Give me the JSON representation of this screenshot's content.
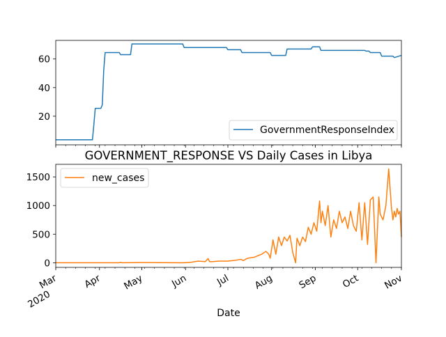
{
  "chart_data": [
    {
      "type": "line",
      "title": "",
      "xlabel": "",
      "ylabel": "",
      "ylim": [
        0,
        73
      ],
      "y_ticks": [
        20,
        40,
        60
      ],
      "grid": false,
      "legend_position": "lower right",
      "series": [
        {
          "name": "GovernmentResponseIndex",
          "color": "#1f77b4",
          "x": [
            "2020-03-01",
            "2020-03-27",
            "2020-03-28",
            "2020-03-29",
            "2020-04-02",
            "2020-04-03",
            "2020-04-04",
            "2020-04-05",
            "2020-04-15",
            "2020-04-16",
            "2020-04-23",
            "2020-04-24",
            "2020-05-30",
            "2020-05-31",
            "2020-06-30",
            "2020-07-01",
            "2020-07-10",
            "2020-07-11",
            "2020-07-31",
            "2020-08-01",
            "2020-08-11",
            "2020-08-12",
            "2020-08-29",
            "2020-08-30",
            "2020-09-04",
            "2020-09-05",
            "2020-10-06",
            "2020-10-07",
            "2020-10-09",
            "2020-10-10",
            "2020-10-17",
            "2020-10-18",
            "2020-10-26",
            "2020-10-27",
            "2020-11-01"
          ],
          "values": [
            3.5,
            3.5,
            14,
            25.5,
            25.5,
            28,
            52,
            64.5,
            64.5,
            63,
            63,
            70.5,
            70.5,
            68,
            68,
            66.5,
            66.5,
            64.5,
            64.5,
            62.5,
            62.5,
            67,
            67,
            68.5,
            68.5,
            66,
            66,
            65.5,
            65.5,
            64.5,
            64.5,
            62,
            62,
            61,
            62.5
          ]
        }
      ]
    },
    {
      "type": "line",
      "title": "GOVERNMENT_RESPONSE VS Daily Cases in Libya",
      "xlabel": "Date",
      "ylabel": "",
      "ylim": [
        -80,
        1720
      ],
      "y_ticks": [
        0,
        500,
        1000,
        1500
      ],
      "x_range": [
        "2020-03-01",
        "2020-11-01"
      ],
      "x_ticks": [
        {
          "date": "2020-03-01",
          "label": "Mar",
          "sublabel": "2020"
        },
        {
          "date": "2020-04-01",
          "label": "Apr",
          "sublabel": ""
        },
        {
          "date": "2020-05-01",
          "label": "May",
          "sublabel": ""
        },
        {
          "date": "2020-06-01",
          "label": "Jun",
          "sublabel": ""
        },
        {
          "date": "2020-07-01",
          "label": "Jul",
          "sublabel": ""
        },
        {
          "date": "2020-08-01",
          "label": "Aug",
          "sublabel": ""
        },
        {
          "date": "2020-09-01",
          "label": "Sep",
          "sublabel": ""
        },
        {
          "date": "2020-10-01",
          "label": "Oct",
          "sublabel": ""
        },
        {
          "date": "2020-11-01",
          "label": "Nov",
          "sublabel": ""
        }
      ],
      "grid": false,
      "legend_position": "upper left",
      "series": [
        {
          "name": "new_cases",
          "color": "#ff7f0e",
          "x": [
            "2020-03-01",
            "2020-04-01",
            "2020-04-15",
            "2020-04-16",
            "2020-04-17",
            "2020-05-01",
            "2020-05-31",
            "2020-06-05",
            "2020-06-10",
            "2020-06-15",
            "2020-06-17",
            "2020-06-18",
            "2020-06-20",
            "2020-06-25",
            "2020-07-01",
            "2020-07-05",
            "2020-07-08",
            "2020-07-10",
            "2020-07-12",
            "2020-07-15",
            "2020-07-20",
            "2020-07-25",
            "2020-07-28",
            "2020-07-30",
            "2020-07-31",
            "2020-08-02",
            "2020-08-04",
            "2020-08-06",
            "2020-08-08",
            "2020-08-10",
            "2020-08-12",
            "2020-08-14",
            "2020-08-16",
            "2020-08-18",
            "2020-08-19",
            "2020-08-21",
            "2020-08-23",
            "2020-08-25",
            "2020-08-27",
            "2020-08-29",
            "2020-08-31",
            "2020-09-02",
            "2020-09-04",
            "2020-09-05",
            "2020-09-06",
            "2020-09-08",
            "2020-09-10",
            "2020-09-12",
            "2020-09-14",
            "2020-09-16",
            "2020-09-18",
            "2020-09-20",
            "2020-09-22",
            "2020-09-24",
            "2020-09-26",
            "2020-09-28",
            "2020-09-30",
            "2020-10-02",
            "2020-10-04",
            "2020-10-06",
            "2020-10-08",
            "2020-10-10",
            "2020-10-12",
            "2020-10-14",
            "2020-10-16",
            "2020-10-17",
            "2020-10-19",
            "2020-10-21",
            "2020-10-23",
            "2020-10-25",
            "2020-10-26",
            "2020-10-27",
            "2020-10-28",
            "2020-10-29",
            "2020-10-30",
            "2020-10-31",
            "2020-11-01"
          ],
          "values": [
            0,
            0,
            0,
            10,
            0,
            5,
            0,
            10,
            30,
            20,
            75,
            20,
            20,
            30,
            30,
            40,
            50,
            60,
            40,
            80,
            100,
            150,
            200,
            150,
            80,
            400,
            150,
            450,
            300,
            450,
            380,
            480,
            180,
            0,
            430,
            300,
            450,
            370,
            620,
            500,
            700,
            550,
            1080,
            700,
            900,
            650,
            1000,
            450,
            750,
            600,
            900,
            700,
            800,
            600,
            900,
            650,
            550,
            1050,
            400,
            1050,
            320,
            1100,
            1150,
            0,
            1150,
            850,
            750,
            1000,
            1640,
            950,
            750,
            900,
            800,
            950,
            850,
            900,
            450
          ]
        }
      ]
    }
  ]
}
